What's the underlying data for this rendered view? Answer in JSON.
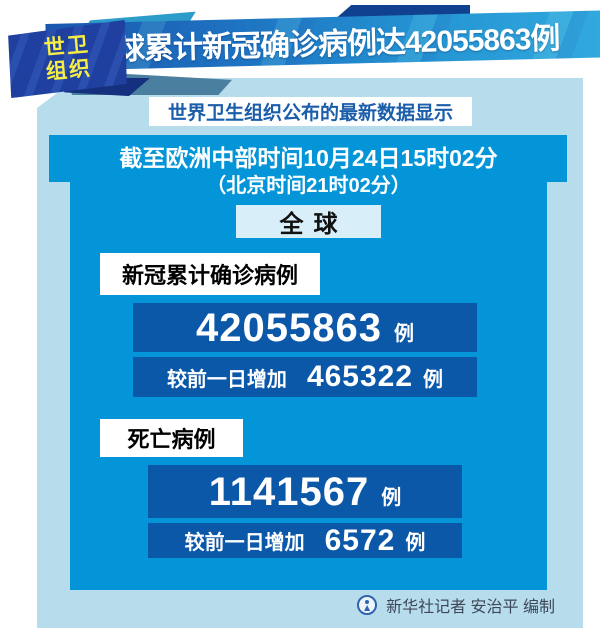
{
  "header": {
    "source_tag": {
      "line1": "世卫",
      "line2": "组织"
    },
    "headline": "全球累计新冠确诊病例达42055863例"
  },
  "intro_note": "世界卫生组织公布的最新数据显示",
  "timestamp": {
    "line1": "截至欧洲中部时间10月24日15时02分",
    "line2": "（北京时间21时02分）"
  },
  "scope": "全球",
  "stats": {
    "confirmed": {
      "label": "新冠累计确诊病例",
      "total": "42055863",
      "unit": "例",
      "delta_label": "较前一日增加",
      "delta": "465322",
      "delta_unit": "例"
    },
    "deaths": {
      "label": "死亡病例",
      "total": "1141567",
      "unit": "例",
      "delta_label": "较前一日增加",
      "delta": "6572",
      "delta_unit": "例"
    }
  },
  "footer": {
    "credit": "新华社记者 安治平 编制"
  },
  "colors": {
    "panel_light": "#b7dcec",
    "panel_bright": "#0495d8",
    "stat_box_navy": "#0b57a8",
    "ribbon_navy": "#20409f",
    "accent_yellow": "#f7ee45",
    "intro_text_blue": "#1b5cab"
  }
}
